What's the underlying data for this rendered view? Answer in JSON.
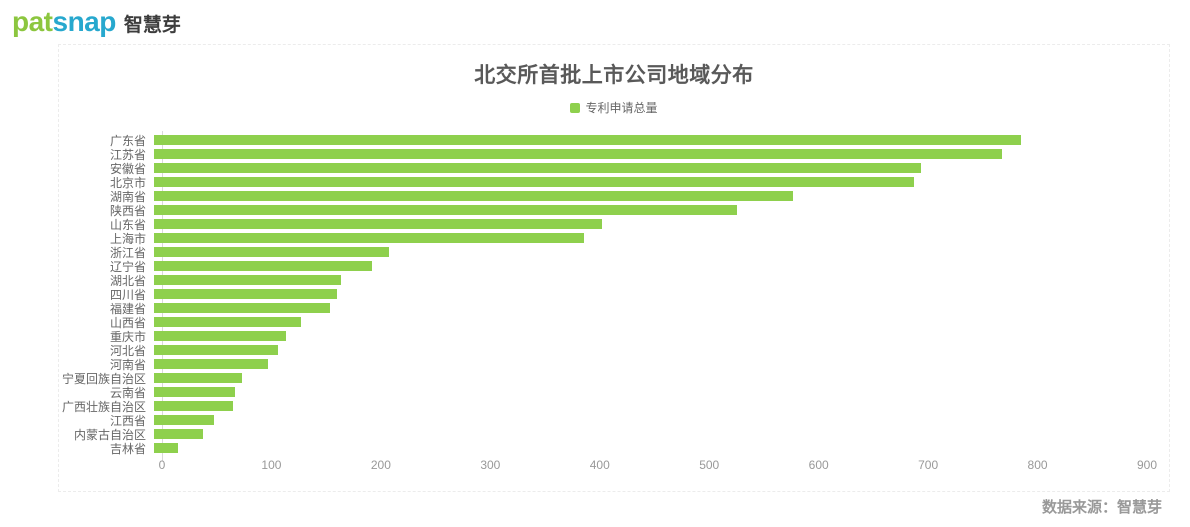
{
  "logo": {
    "part1": "pat",
    "part2": "snap",
    "suffix": "智慧芽"
  },
  "colors": {
    "bar": "#8ed04d",
    "logo_green": "#8cc63f",
    "logo_blue": "#27a8ce",
    "title": "#595959",
    "category_label": "#666666",
    "tick_label": "#999999",
    "source_text": "#999999"
  },
  "chart_data": {
    "type": "bar",
    "orientation": "horizontal",
    "title": "北交所首批上市公司地域分布",
    "legend": [
      "专利申请总量"
    ],
    "legend_position": "top-center",
    "grid": false,
    "xlabel": "",
    "ylabel": "",
    "xlim": [
      0,
      900
    ],
    "x_ticks": [
      0,
      100,
      200,
      300,
      400,
      500,
      600,
      700,
      800,
      900
    ],
    "categories": [
      "广东省",
      "江苏省",
      "安徽省",
      "北京市",
      "湖南省",
      "陕西省",
      "山东省",
      "上海市",
      "浙江省",
      "辽宁省",
      "湖北省",
      "四川省",
      "福建省",
      "山西省",
      "重庆市",
      "河北省",
      "河南省",
      "宁夏回族自治区",
      "云南省",
      "广西壮族自治区",
      "江西省",
      "内蒙古自治区",
      "吉林省"
    ],
    "series": [
      {
        "name": "专利申请总量",
        "values": [
          792,
          775,
          701,
          694,
          584,
          533,
          409,
          393,
          215,
          199,
          171,
          167,
          161,
          134,
          121,
          113,
          104,
          80,
          74,
          72,
          55,
          45,
          22
        ]
      }
    ]
  },
  "footer": {
    "source_label": "数据来源：智慧芽"
  }
}
